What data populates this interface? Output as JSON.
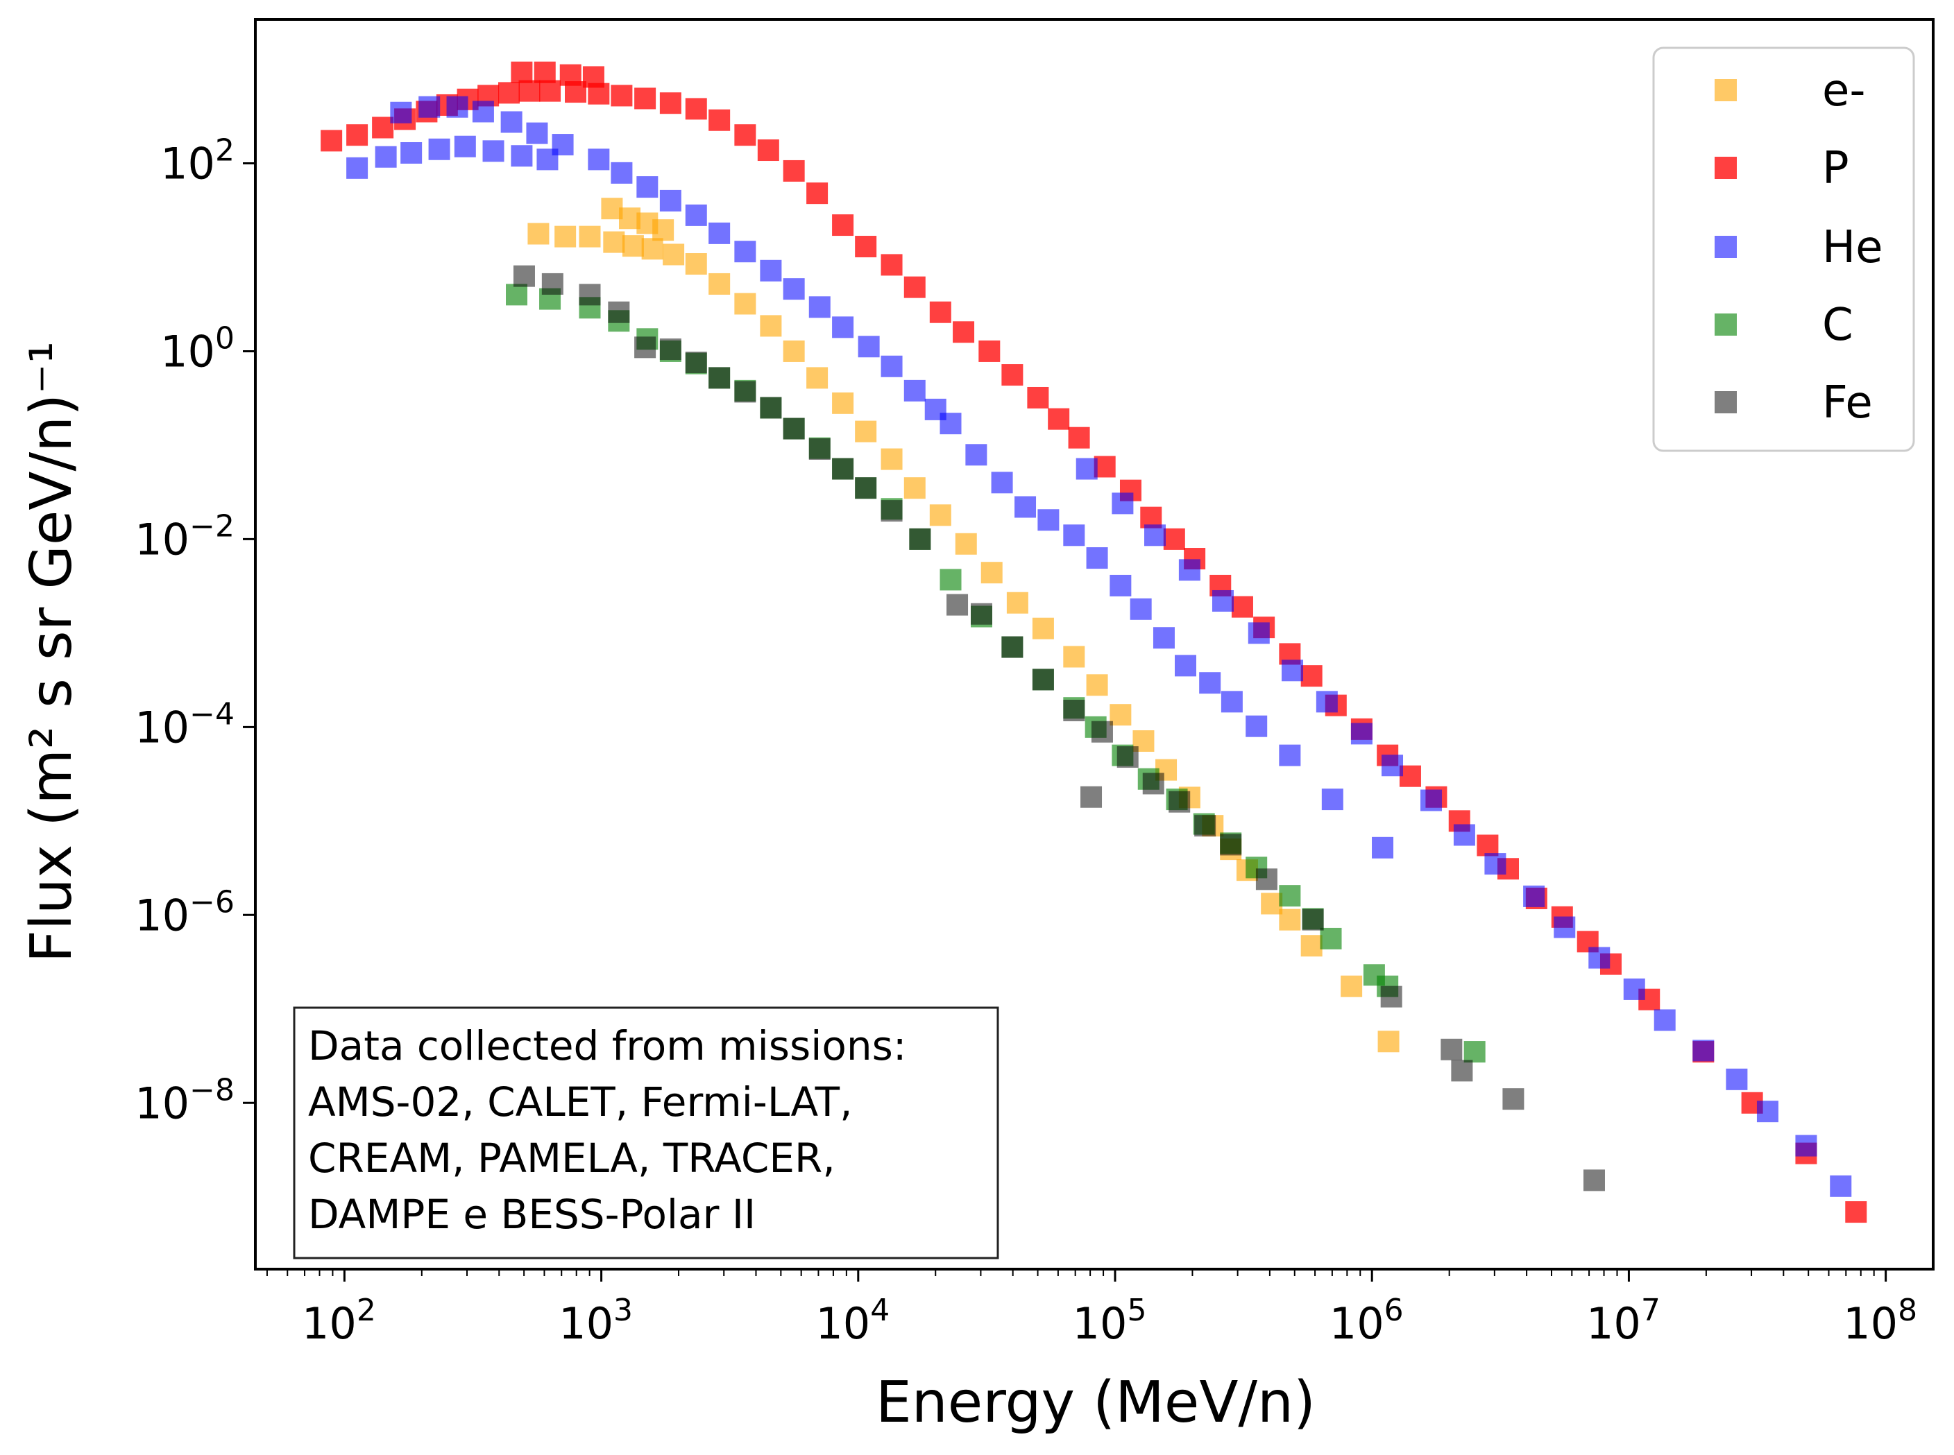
{
  "chart_data": {
    "type": "scatter",
    "title": "",
    "xlabel": "Energy (MeV/n)",
    "ylabel": "Flux (m² s sr GeV/n)⁻¹",
    "xscale": "log",
    "yscale": "log",
    "xlim": [
      45,
      153000000.0
    ],
    "ylim": [
      1.7e-10,
      3400
    ],
    "grid": false,
    "legend_position": "top-right",
    "x_ticks": [
      {
        "value": 100.0,
        "base": "10",
        "exp": "2"
      },
      {
        "value": 1000.0,
        "base": "10",
        "exp": "3"
      },
      {
        "value": 10000.0,
        "base": "10",
        "exp": "4"
      },
      {
        "value": 100000.0,
        "base": "10",
        "exp": "5"
      },
      {
        "value": 1000000.0,
        "base": "10",
        "exp": "6"
      },
      {
        "value": 10000000.0,
        "base": "10",
        "exp": "7"
      },
      {
        "value": 100000000.0,
        "base": "10",
        "exp": "8"
      }
    ],
    "y_ticks": [
      {
        "value": 100.0,
        "base": "10",
        "exp": "2"
      },
      {
        "value": 1.0,
        "base": "10",
        "exp": "0"
      },
      {
        "value": 0.01,
        "base": "10",
        "exp": "−2"
      },
      {
        "value": 0.0001,
        "base": "10",
        "exp": "−4"
      },
      {
        "value": 1e-06,
        "base": "10",
        "exp": "−6"
      },
      {
        "value": 1e-08,
        "base": "10",
        "exp": "−8"
      }
    ],
    "annotation": {
      "lines": [
        "Data collected from missions:",
        "AMS-02, CALET, Fermi-LAT,",
        "CREAM, PAMELA, TRACER,",
        "DAMPE e BESS-Polar II"
      ]
    },
    "series": [
      {
        "name": "e-",
        "color": "#FFA500",
        "opacity": 0.6,
        "marker": "square",
        "points": [
          [
            569,
            17.8
          ],
          [
            724,
            16.6
          ],
          [
            902,
            16.6
          ],
          [
            1120,
            14.5
          ],
          [
            1330,
            13.2
          ],
          [
            1580,
            12.3
          ],
          [
            1910,
            10.7
          ],
          [
            1100,
            33
          ],
          [
            1290,
            26
          ],
          [
            1510,
            23
          ],
          [
            1740,
            19.5
          ],
          [
            2340,
            8.5
          ],
          [
            2880,
            5.2
          ],
          [
            3630,
            3.2
          ],
          [
            4570,
            1.86
          ],
          [
            5620,
            1.0
          ],
          [
            6920,
            0.52
          ],
          [
            8710,
            0.28
          ],
          [
            10700,
            0.14
          ],
          [
            13500,
            0.071
          ],
          [
            16600,
            0.035
          ],
          [
            20900,
            0.018
          ],
          [
            26300,
            0.0089
          ],
          [
            33100,
            0.0044
          ],
          [
            41700,
            0.0021
          ],
          [
            52500,
            0.00112
          ],
          [
            69200,
            0.00056
          ],
          [
            85100,
            0.00028
          ],
          [
            105000,
            0.000135
          ],
          [
            129000,
            7.1e-05
          ],
          [
            158000,
            3.5e-05
          ],
          [
            195000,
            1.78e-05
          ],
          [
            240000,
            8.9e-06
          ],
          [
            282000,
            5e-06
          ],
          [
            327000,
            3e-06
          ],
          [
            407000,
            1.32e-06
          ],
          [
            479000,
            8.9e-07
          ],
          [
            582000,
            4.7e-07
          ],
          [
            832000,
            1.74e-07
          ],
          [
            1160000,
            4.5e-08
          ]
        ]
      },
      {
        "name": "P",
        "color": "#FF0000",
        "opacity": 0.75,
        "marker": "square",
        "points": [
          [
            89,
            174
          ],
          [
            112,
            200
          ],
          [
            141,
            240
          ],
          [
            172,
            295
          ],
          [
            209,
            355
          ],
          [
            251,
            417
          ],
          [
            302,
            479
          ],
          [
            363,
            525
          ],
          [
            437,
            562
          ],
          [
            525,
            589
          ],
          [
            631,
            589
          ],
          [
            794,
            575
          ],
          [
            977,
            550
          ],
          [
            1200,
            525
          ],
          [
            1480,
            490
          ],
          [
            1860,
            437
          ],
          [
            2340,
            380
          ],
          [
            2880,
            288
          ],
          [
            3630,
            200
          ],
          [
            4470,
            138
          ],
          [
            5620,
            83
          ],
          [
            6920,
            48
          ],
          [
            8710,
            22
          ],
          [
            10700,
            13
          ],
          [
            13500,
            8.3
          ],
          [
            16600,
            4.8
          ],
          [
            20900,
            2.6
          ],
          [
            25700,
            1.6
          ],
          [
            32400,
            1.0
          ],
          [
            39800,
            0.56
          ],
          [
            50100,
            0.32
          ],
          [
            60300,
            0.19
          ],
          [
            72400,
            0.12
          ],
          [
            91200,
            0.059
          ],
          [
            115000,
            0.033
          ],
          [
            138000,
            0.017
          ],
          [
            170000,
            0.01
          ],
          [
            204000,
            0.0062
          ],
          [
            257000,
            0.0032
          ],
          [
            313000,
            0.0019
          ],
          [
            380000,
            0.00115
          ],
          [
            479000,
            0.0006
          ],
          [
            582000,
            0.00035
          ],
          [
            724000,
            0.00017
          ],
          [
            912000,
            9.5e-05
          ],
          [
            1150000,
            5e-05
          ],
          [
            1410000,
            3e-05
          ],
          [
            1780000,
            1.8e-05
          ],
          [
            2190000,
            1e-05
          ],
          [
            2820000,
            5.5e-06
          ],
          [
            3390000,
            3.1e-06
          ],
          [
            4370000,
            1.5e-06
          ],
          [
            5500000,
            9.5e-07
          ],
          [
            6920000,
            5.2e-07
          ],
          [
            8510000,
            3e-07
          ],
          [
            12000000.0,
            1.26e-07
          ],
          [
            19500000.0,
            3.5e-08
          ],
          [
            30200000.0,
            1e-08
          ],
          [
            49000000.0,
            2.9e-09
          ],
          [
            76600000.0,
            6.9e-10
          ],
          [
            490,
            930
          ],
          [
            603,
            930
          ],
          [
            759,
            870
          ],
          [
            933,
            830
          ]
        ]
      },
      {
        "name": "He",
        "color": "#0000FF",
        "opacity": 0.55,
        "marker": "square",
        "points": [
          [
            112,
            89
          ],
          [
            145,
            117
          ],
          [
            182,
            129
          ],
          [
            234,
            141
          ],
          [
            295,
            151
          ],
          [
            380,
            135
          ],
          [
            490,
            120
          ],
          [
            617,
            110
          ],
          [
            166,
            347
          ],
          [
            214,
            398
          ],
          [
            275,
            398
          ],
          [
            347,
            355
          ],
          [
            447,
            275
          ],
          [
            562,
            209
          ],
          [
            708,
            158
          ],
          [
            977,
            110
          ],
          [
            1200,
            79
          ],
          [
            1510,
            56
          ],
          [
            1860,
            40
          ],
          [
            2340,
            28
          ],
          [
            2880,
            18
          ],
          [
            3630,
            11.5
          ],
          [
            4570,
            7.2
          ],
          [
            5620,
            4.6
          ],
          [
            7080,
            2.95
          ],
          [
            8710,
            1.8
          ],
          [
            11000,
            1.12
          ],
          [
            13500,
            0.69
          ],
          [
            16600,
            0.38
          ],
          [
            20000,
            0.24
          ],
          [
            22900,
            0.17
          ],
          [
            28800,
            0.079
          ],
          [
            36300,
            0.04
          ],
          [
            44700,
            0.022
          ],
          [
            55000,
            0.016
          ],
          [
            69200,
            0.011
          ],
          [
            85100,
            0.0063
          ],
          [
            105000,
            0.0032
          ],
          [
            126000,
            0.0018
          ],
          [
            155000,
            0.00089
          ],
          [
            188000,
            0.00045
          ],
          [
            234000,
            0.000295
          ],
          [
            285000,
            0.000186
          ],
          [
            355000,
            0.000102
          ],
          [
            479000,
            5e-05
          ],
          [
            702000,
            1.7e-05
          ],
          [
            1100000,
            5.2e-06
          ],
          [
            77600,
            0.056
          ],
          [
            107000,
            0.024
          ],
          [
            143000,
            0.011
          ],
          [
            195000,
            0.0047
          ],
          [
            263000,
            0.0022
          ],
          [
            363000,
            0.001
          ],
          [
            490000,
            0.0004
          ],
          [
            668000,
            0.000186
          ],
          [
            912000,
            8.5e-05
          ],
          [
            1200000,
            3.9e-05
          ],
          [
            1700000,
            1.66e-05
          ],
          [
            2290000,
            7.1e-06
          ],
          [
            3020000,
            3.5e-06
          ],
          [
            4270000,
            1.58e-06
          ],
          [
            5620000,
            7.4e-07
          ],
          [
            7670000,
            3.5e-07
          ],
          [
            10500000.0,
            1.62e-07
          ],
          [
            13800000.0,
            7.6e-08
          ],
          [
            19500000.0,
            3.6e-08
          ],
          [
            26300000.0,
            1.78e-08
          ],
          [
            34700000.0,
            8.1e-09
          ],
          [
            49000000.0,
            3.5e-09
          ],
          [
            66800000.0,
            1.3e-09
          ]
        ]
      },
      {
        "name": "C",
        "color": "#008000",
        "opacity": 0.6,
        "marker": "square",
        "points": [
          [
            468,
            4.0
          ],
          [
            631,
            3.6
          ],
          [
            902,
            2.9
          ],
          [
            1170,
            2.1
          ],
          [
            1510,
            1.35
          ],
          [
            1860,
            1.0
          ],
          [
            2340,
            0.74
          ],
          [
            2880,
            0.52
          ],
          [
            3630,
            0.38
          ],
          [
            4570,
            0.25
          ],
          [
            5620,
            0.15
          ],
          [
            7080,
            0.093
          ],
          [
            8710,
            0.056
          ],
          [
            10700,
            0.035
          ],
          [
            13500,
            0.021
          ],
          [
            17400,
            0.01
          ],
          [
            22900,
            0.0037
          ],
          [
            30200,
            0.0015
          ],
          [
            39800,
            0.00071
          ],
          [
            52500,
            0.00032
          ],
          [
            69200,
            0.00016
          ],
          [
            84100,
            0.0001
          ],
          [
            107000,
            5e-05
          ],
          [
            135000,
            2.8e-05
          ],
          [
            174000,
            1.7e-05
          ],
          [
            222000,
            9.3e-06
          ],
          [
            282000,
            5.8e-06
          ],
          [
            355000,
            3.2e-06
          ],
          [
            479000,
            1.6e-06
          ],
          [
            589000,
            9.1e-07
          ],
          [
            692000,
            5.6e-07
          ],
          [
            1020000,
            2.3e-07
          ],
          [
            1150000,
            1.74e-07
          ],
          [
            2510000,
            3.5e-08
          ]
        ]
      },
      {
        "name": "Fe",
        "color": "#000000",
        "opacity": 0.5,
        "marker": "square",
        "points": [
          [
            501,
            6.3
          ],
          [
            646,
            5.2
          ],
          [
            902,
            4.0
          ],
          [
            1170,
            2.6
          ],
          [
            1480,
            1.1
          ],
          [
            1860,
            1.05
          ],
          [
            2340,
            0.76
          ],
          [
            2880,
            0.52
          ],
          [
            3630,
            0.37
          ],
          [
            4570,
            0.25
          ],
          [
            5620,
            0.15
          ],
          [
            7080,
            0.091
          ],
          [
            8710,
            0.056
          ],
          [
            10700,
            0.035
          ],
          [
            13500,
            0.02
          ],
          [
            17400,
            0.01
          ],
          [
            24300,
            0.002
          ],
          [
            30200,
            0.0016
          ],
          [
            39800,
            0.00071
          ],
          [
            52500,
            0.00032
          ],
          [
            69200,
            0.00015
          ],
          [
            80700,
            1.8e-05
          ],
          [
            89100,
            8.9e-05
          ],
          [
            112000,
            4.8e-05
          ],
          [
            141000,
            2.5e-05
          ],
          [
            178000,
            1.6e-05
          ],
          [
            224000,
            8.9e-06
          ],
          [
            282000,
            5.6e-06
          ],
          [
            389000,
            2.4e-06
          ],
          [
            589000,
            8.9e-07
          ],
          [
            1190000,
            1.35e-07
          ],
          [
            2040000,
            3.7e-08
          ],
          [
            2240000,
            2.2e-08
          ],
          [
            3550000,
            1.1e-08
          ],
          [
            7330000,
            1.5e-09
          ]
        ]
      }
    ]
  }
}
